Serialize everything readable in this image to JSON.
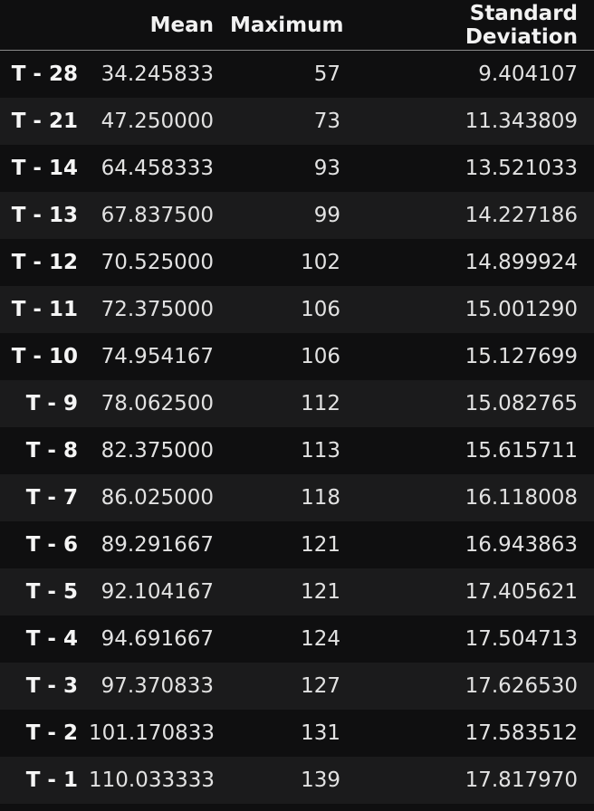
{
  "table": {
    "columns": [
      "",
      "Mean",
      "Maximum",
      "Standard Deviation"
    ],
    "rows": [
      {
        "label": "T - 28",
        "mean": "34.245833",
        "maximum": "57",
        "std": "9.404107"
      },
      {
        "label": "T - 21",
        "mean": "47.250000",
        "maximum": "73",
        "std": "11.343809"
      },
      {
        "label": "T - 14",
        "mean": "64.458333",
        "maximum": "93",
        "std": "13.521033"
      },
      {
        "label": "T - 13",
        "mean": "67.837500",
        "maximum": "99",
        "std": "14.227186"
      },
      {
        "label": "T - 12",
        "mean": "70.525000",
        "maximum": "102",
        "std": "14.899924"
      },
      {
        "label": "T - 11",
        "mean": "72.375000",
        "maximum": "106",
        "std": "15.001290"
      },
      {
        "label": "T - 10",
        "mean": "74.954167",
        "maximum": "106",
        "std": "15.127699"
      },
      {
        "label": "T - 9",
        "mean": "78.062500",
        "maximum": "112",
        "std": "15.082765"
      },
      {
        "label": "T - 8",
        "mean": "82.375000",
        "maximum": "113",
        "std": "15.615711"
      },
      {
        "label": "T - 7",
        "mean": "86.025000",
        "maximum": "118",
        "std": "16.118008"
      },
      {
        "label": "T - 6",
        "mean": "89.291667",
        "maximum": "121",
        "std": "16.943863"
      },
      {
        "label": "T - 5",
        "mean": "92.104167",
        "maximum": "121",
        "std": "17.405621"
      },
      {
        "label": "T - 4",
        "mean": "94.691667",
        "maximum": "124",
        "std": "17.504713"
      },
      {
        "label": "T - 3",
        "mean": "97.370833",
        "maximum": "127",
        "std": "17.626530"
      },
      {
        "label": "T - 2",
        "mean": "101.170833",
        "maximum": "131",
        "std": "17.583512"
      },
      {
        "label": "T - 1",
        "mean": "110.033333",
        "maximum": "139",
        "std": "17.817970"
      }
    ]
  },
  "colors": {
    "background": "#0f0f10",
    "stripe": "#1b1b1c",
    "text": "#e2e2e2",
    "header_rule": "#8a8a8a"
  }
}
